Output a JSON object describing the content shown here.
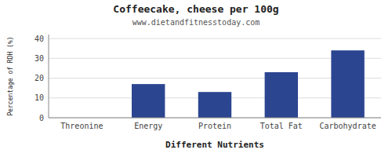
{
  "chart_data": {
    "type": "bar",
    "title": "Coffeecake, cheese per 100g",
    "subtitle": "www.dietandfitnesstoday.com",
    "xlabel": "Different Nutrients",
    "ylabel": "Percentage of RDH (%)",
    "categories": [
      "Threonine",
      "Energy",
      "Protein",
      "Total Fat",
      "Carbohydrate"
    ],
    "values": [
      0,
      17,
      13,
      23,
      34
    ],
    "color": "#2b4590",
    "ylim": [
      0,
      42
    ],
    "yticks": [
      0,
      10,
      20,
      30,
      40
    ],
    "grid": true
  }
}
